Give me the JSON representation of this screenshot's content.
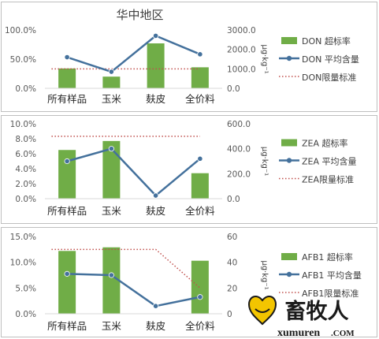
{
  "chart_data": [
    {
      "type": "bar",
      "title": "华中地区",
      "categories": [
        "所有样品",
        "玉米",
        "麸皮",
        "全价料"
      ],
      "ylim": [
        0,
        100
      ],
      "y2lim": [
        0,
        3000
      ],
      "y_ticks": [
        "0.0%",
        "50.0%",
        "100.0%"
      ],
      "y2_ticks": [
        "0.0",
        "1000.0",
        "2000.0",
        "3000.0"
      ],
      "y2label": "μg·kg⁻¹",
      "grid": false,
      "legend_position": "right",
      "series": [
        {
          "name": "DON 超标率",
          "kind": "bar",
          "axis": "left",
          "values": [
            34,
            20,
            77,
            36
          ],
          "color": "#70ad47"
        },
        {
          "name": "DON 平均含量",
          "kind": "line",
          "axis": "right",
          "values": [
            1600,
            850,
            2700,
            1750
          ],
          "color": "#44719c"
        },
        {
          "name": "DON限量标准",
          "kind": "dotted",
          "axis": "right",
          "values": [
            1000,
            1000,
            1000,
            1000
          ],
          "color": "#c0504d"
        }
      ]
    },
    {
      "type": "bar",
      "title": "",
      "categories": [
        "所有样品",
        "玉米",
        "麸皮",
        "全价料"
      ],
      "ylim": [
        0,
        10
      ],
      "y2lim": [
        0,
        600
      ],
      "y_ticks": [
        "0.0%",
        "2.0%",
        "4.0%",
        "6.0%",
        "8.0%",
        "10.0%"
      ],
      "y2_ticks": [
        "0.0",
        "200.0",
        "400.0",
        "600.0"
      ],
      "y2label": "μg·kg⁻¹",
      "grid": false,
      "legend_position": "right",
      "series": [
        {
          "name": "ZEA 超标率",
          "kind": "bar",
          "axis": "left",
          "values": [
            6.5,
            7.7,
            0,
            3.4
          ],
          "color": "#70ad47"
        },
        {
          "name": "ZEA 平均含量",
          "kind": "line",
          "axis": "right",
          "values": [
            300,
            400,
            25,
            320
          ],
          "color": "#44719c"
        },
        {
          "name": "ZEA限量标准",
          "kind": "dotted",
          "axis": "right",
          "values": [
            500,
            500,
            500,
            500
          ],
          "color": "#c0504d"
        }
      ]
    },
    {
      "type": "bar",
      "title": "",
      "categories": [
        "所有样品",
        "玉米",
        "麸皮",
        "全价料"
      ],
      "ylim": [
        0,
        15
      ],
      "y2lim": [
        0,
        60
      ],
      "y_ticks": [
        "0.0%",
        "5.0%",
        "10.0%",
        "15.0%"
      ],
      "y2_ticks": [
        "0",
        "20",
        "40",
        "60"
      ],
      "y2label": "μg·kg⁻¹",
      "grid": false,
      "legend_position": "right",
      "series": [
        {
          "name": "AFB1 超标率",
          "kind": "bar",
          "axis": "left",
          "values": [
            12.2,
            12.9,
            0,
            10.3
          ],
          "color": "#70ad47"
        },
        {
          "name": "AFB1 平均含量",
          "kind": "line",
          "axis": "right",
          "values": [
            31,
            30,
            6,
            13
          ],
          "color": "#44719c"
        },
        {
          "name": "AFB1限量标准",
          "kind": "dotted",
          "axis": "right",
          "values": [
            50,
            50,
            50,
            20
          ],
          "color": "#c0504d"
        }
      ]
    }
  ],
  "watermark": {
    "brand": "畜牧人",
    "site": "xumuren",
    "tld": ".COM"
  }
}
